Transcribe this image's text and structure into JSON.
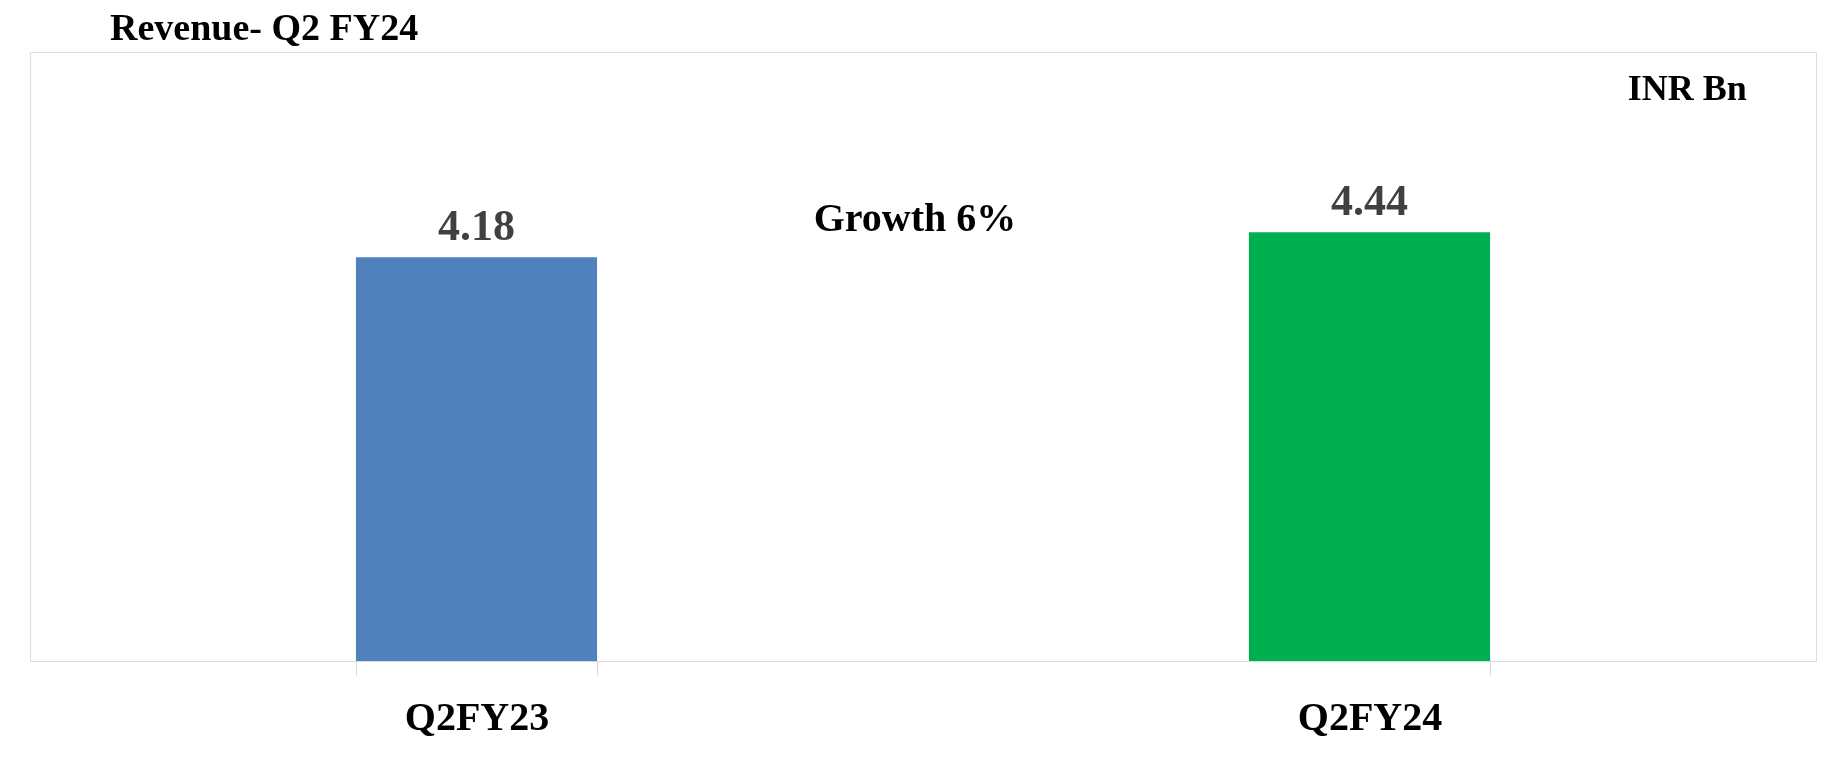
{
  "chart_data": {
    "type": "bar",
    "title": "Revenue- Q2 FY24",
    "categories": [
      "Q2FY23",
      "Q2FY24"
    ],
    "values": [
      4.18,
      4.44
    ],
    "colors": [
      "#4f81bd",
      "#00b050"
    ],
    "data_labels": true,
    "annotations": [
      "Growth 6%",
      "INR Bn"
    ]
  }
}
